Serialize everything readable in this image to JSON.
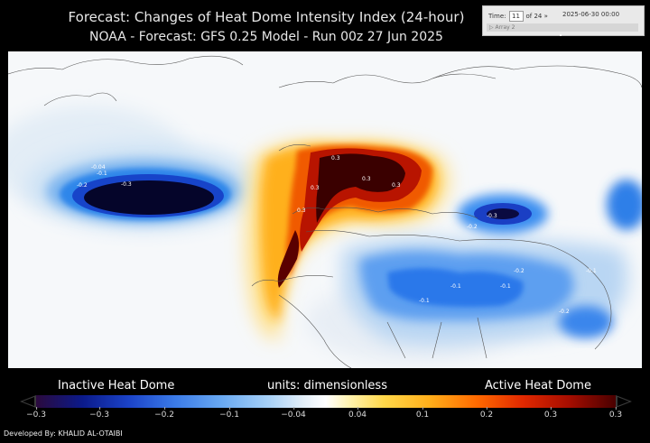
{
  "title": "Forecast: Changes of Heat Dome Intensity Index (24-hour)",
  "subtitle": "NOAA - Forecast: GFS 0.25 Model - Run 00z 27 Jun 2025",
  "time_panel": {
    "time_label": "Time:",
    "step": "11",
    "of_label": "of 24 »",
    "datetime": "2025-06-30 00:00",
    "array_label": "Array 2"
  },
  "legend": {
    "left_label": "Inactive Heat Dome",
    "center_label": "units: dimensionless",
    "right_label": "Active Heat Dome",
    "ticks": [
      "−0.3",
      "−0.3",
      "−0.2",
      "−0.1",
      "−0.04",
      "0.04",
      "0.1",
      "0.2",
      "0.3",
      "0.3"
    ]
  },
  "contour_labels": [
    "-0.04",
    "-0.1",
    "-0.2",
    "-0.3",
    "0.3",
    "0.3",
    "0.3",
    "0.3",
    "0.3",
    "-0.3",
    "-0.2",
    "-0.1",
    "-0.1",
    "-0.1",
    "-0.2",
    "-0.1",
    "-0.2"
  ],
  "credit": "Developed By: KHALID AL-OTAIBI",
  "colors": {
    "deep_negative": "#0b0b3a",
    "negative": "#1e6ee0",
    "light_negative": "#9cc7f2",
    "positive": "#ffb21a",
    "strong_positive": "#c01a00",
    "extreme_positive": "#3a0000"
  }
}
